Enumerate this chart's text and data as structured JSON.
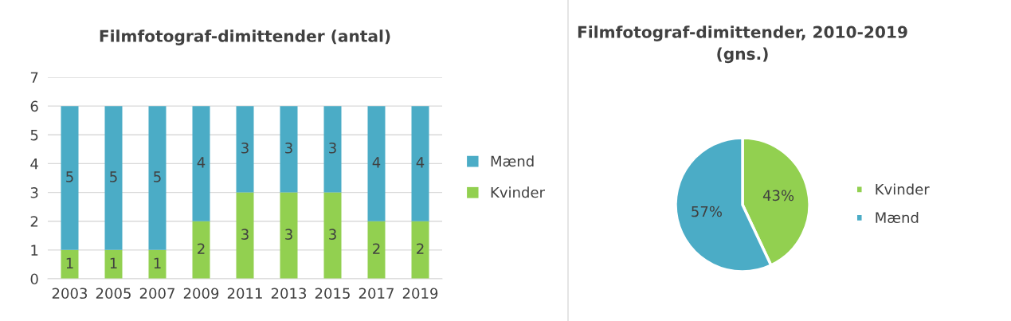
{
  "chart_data": [
    {
      "type": "bar",
      "title": "Filmfotograf-dimittender (antal)",
      "categories": [
        "2003",
        "2005",
        "2007",
        "2009",
        "2011",
        "2013",
        "2015",
        "2017",
        "2019"
      ],
      "stacked": true,
      "series": [
        {
          "name": "Kvinder",
          "color": "#92d050",
          "values": [
            1,
            1,
            1,
            2,
            3,
            3,
            3,
            2,
            2
          ]
        },
        {
          "name": "Mænd",
          "color": "#4bacc6",
          "values": [
            5,
            5,
            5,
            4,
            3,
            3,
            3,
            4,
            4
          ]
        }
      ],
      "ylim": [
        0,
        7
      ],
      "yticks": [
        0,
        1,
        2,
        3,
        4,
        5,
        6,
        7
      ],
      "grid": "y",
      "legend": "right",
      "data_labels": true
    },
    {
      "type": "pie",
      "title": "Filmfotograf-dimittender, 2010-2019\n(gns.)",
      "categories": [
        "Kvinder",
        "Mænd"
      ],
      "values": [
        43,
        57
      ],
      "colors": [
        "#92d050",
        "#4bacc6"
      ],
      "value_labels": [
        "43%",
        "57%"
      ],
      "legend": "right"
    }
  ]
}
